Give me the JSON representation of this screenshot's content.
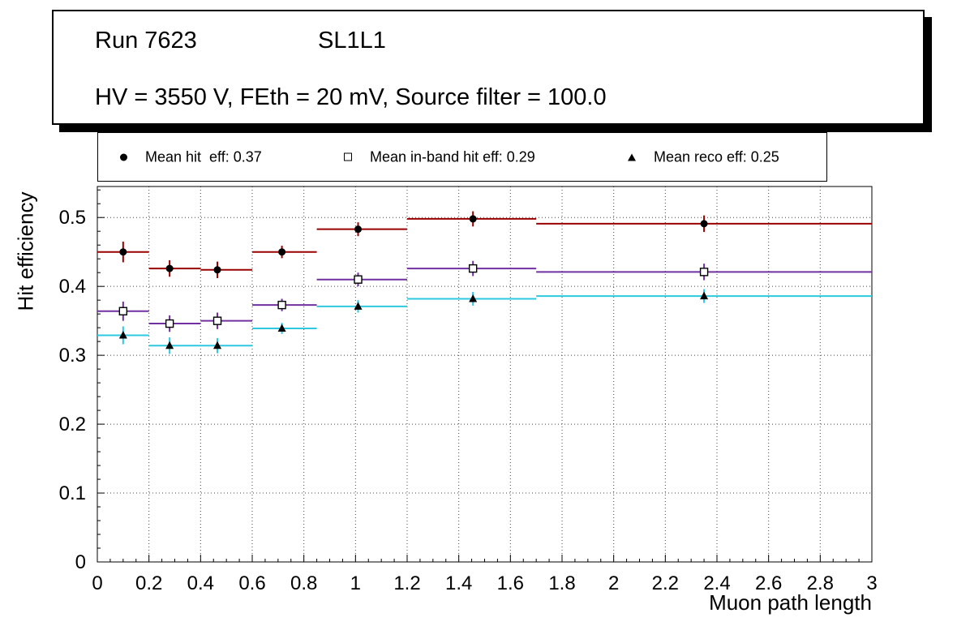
{
  "title_box": {
    "run": "Run 7623",
    "chamber": "SL1L1",
    "conditions": "HV = 3550 V, FEth = 20 mV, Source filter = 100.0"
  },
  "legend": {
    "entries": [
      {
        "id": "hit-eff",
        "marker": "filled-circle",
        "label": "Mean hit  eff: 0.37"
      },
      {
        "id": "in-band-hit-eff",
        "marker": "open-square",
        "label": "Mean in-band hit eff: 0.29"
      },
      {
        "id": "reco-eff",
        "marker": "filled-triangle",
        "label": "Mean reco eff: 0.25"
      }
    ]
  },
  "chart_data": {
    "type": "scatter",
    "title": "",
    "xlabel": "Muon path length",
    "ylabel": "Hit efficiency",
    "xlim": [
      0,
      3
    ],
    "ylim": [
      0,
      0.545
    ],
    "grid": true,
    "legend_position": "top",
    "x_ticks": [
      0,
      0.2,
      0.4,
      0.6,
      0.8,
      1,
      1.2,
      1.4,
      1.6,
      1.8,
      2,
      2.2,
      2.4,
      2.6,
      2.8,
      3
    ],
    "x_tick_labels": [
      "0",
      "0.2",
      "0.4",
      "0.6",
      "0.8",
      "1",
      "1.2",
      "1.4",
      "1.6",
      "1.8",
      "2",
      "2.2",
      "2.4",
      "2.6",
      "2.8",
      "3"
    ],
    "y_ticks": [
      0,
      0.1,
      0.2,
      0.3,
      0.4,
      0.5
    ],
    "y_tick_labels": [
      "0",
      "0.1",
      "0.2",
      "0.3",
      "0.4",
      "0.5"
    ],
    "series": [
      {
        "id": "hit-eff",
        "name": "Mean hit eff",
        "mean": 0.37,
        "color": "#990000",
        "marker": "filled-circle",
        "marker_color": "#000000",
        "points": [
          {
            "x": 0.1,
            "xlow": 0.0,
            "xhigh": 0.2,
            "y": 0.45,
            "ey": 0.015
          },
          {
            "x": 0.28,
            "xlow": 0.2,
            "xhigh": 0.4,
            "y": 0.426,
            "ey": 0.012
          },
          {
            "x": 0.465,
            "xlow": 0.4,
            "xhigh": 0.6,
            "y": 0.424,
            "ey": 0.012
          },
          {
            "x": 0.715,
            "xlow": 0.6,
            "xhigh": 0.85,
            "y": 0.45,
            "ey": 0.009
          },
          {
            "x": 1.01,
            "xlow": 0.85,
            "xhigh": 1.2,
            "y": 0.483,
            "ey": 0.01
          },
          {
            "x": 1.455,
            "xlow": 1.2,
            "xhigh": 1.7,
            "y": 0.498,
            "ey": 0.011
          },
          {
            "x": 2.35,
            "xlow": 1.7,
            "xhigh": 3.0,
            "y": 0.491,
            "ey": 0.012
          }
        ]
      },
      {
        "id": "in-band-hit-eff",
        "name": "Mean in-band hit eff",
        "mean": 0.29,
        "color": "#7030a0",
        "marker": "open-square",
        "marker_color": "#000000",
        "points": [
          {
            "x": 0.1,
            "xlow": 0.0,
            "xhigh": 0.2,
            "y": 0.364,
            "ey": 0.014
          },
          {
            "x": 0.28,
            "xlow": 0.2,
            "xhigh": 0.4,
            "y": 0.346,
            "ey": 0.012
          },
          {
            "x": 0.465,
            "xlow": 0.4,
            "xhigh": 0.6,
            "y": 0.35,
            "ey": 0.012
          },
          {
            "x": 0.715,
            "xlow": 0.6,
            "xhigh": 0.85,
            "y": 0.373,
            "ey": 0.009
          },
          {
            "x": 1.01,
            "xlow": 0.85,
            "xhigh": 1.2,
            "y": 0.41,
            "ey": 0.01
          },
          {
            "x": 1.455,
            "xlow": 1.2,
            "xhigh": 1.7,
            "y": 0.426,
            "ey": 0.011
          },
          {
            "x": 2.35,
            "xlow": 1.7,
            "xhigh": 3.0,
            "y": 0.421,
            "ey": 0.012
          }
        ]
      },
      {
        "id": "reco-eff",
        "name": "Mean reco eff",
        "mean": 0.25,
        "color": "#2ec9e0",
        "marker": "filled-triangle",
        "marker_color": "#000000",
        "points": [
          {
            "x": 0.1,
            "xlow": 0.0,
            "xhigh": 0.2,
            "y": 0.329,
            "ey": 0.013
          },
          {
            "x": 0.28,
            "xlow": 0.2,
            "xhigh": 0.4,
            "y": 0.314,
            "ey": 0.012
          },
          {
            "x": 0.465,
            "xlow": 0.4,
            "xhigh": 0.6,
            "y": 0.314,
            "ey": 0.011
          },
          {
            "x": 0.715,
            "xlow": 0.6,
            "xhigh": 0.85,
            "y": 0.339,
            "ey": 0.008
          },
          {
            "x": 1.01,
            "xlow": 0.85,
            "xhigh": 1.2,
            "y": 0.371,
            "ey": 0.009
          },
          {
            "x": 1.455,
            "xlow": 1.2,
            "xhigh": 1.7,
            "y": 0.382,
            "ey": 0.01
          },
          {
            "x": 2.35,
            "xlow": 1.7,
            "xhigh": 3.0,
            "y": 0.386,
            "ey": 0.01
          }
        ]
      }
    ]
  }
}
